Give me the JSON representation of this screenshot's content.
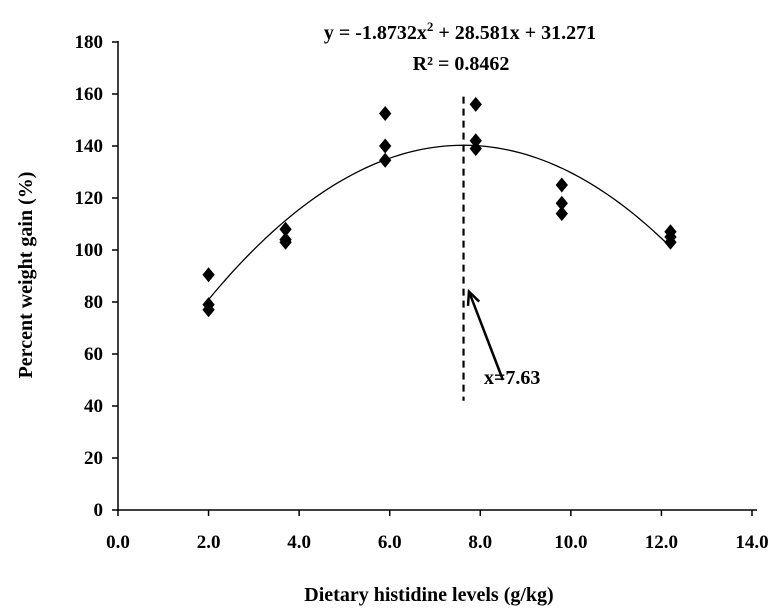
{
  "chart_data": {
    "type": "scatter",
    "xlabel": "Dietary histidine levels (g/kg)",
    "ylabel": "Percent weight gain (%)",
    "xlim": [
      0,
      14
    ],
    "ylim": [
      0,
      180
    ],
    "x_ticks": [
      0,
      2,
      4,
      6,
      8,
      10,
      12,
      14
    ],
    "x_tick_labels": [
      "0.0",
      "2.0",
      "4.0",
      "6.0",
      "8.0",
      "10.0",
      "12.0",
      "14.0"
    ],
    "y_ticks": [
      0,
      20,
      40,
      60,
      80,
      100,
      120,
      140,
      160,
      180
    ],
    "y_tick_labels": [
      "0",
      "20",
      "40",
      "60",
      "80",
      "100",
      "120",
      "140",
      "160",
      "180"
    ],
    "grid": false,
    "marker": "diamond",
    "marker_color": "#000000",
    "points": [
      {
        "x": 2.0,
        "y": 90.5
      },
      {
        "x": 2.0,
        "y": 79
      },
      {
        "x": 2.0,
        "y": 77
      },
      {
        "x": 3.7,
        "y": 108
      },
      {
        "x": 3.7,
        "y": 104
      },
      {
        "x": 3.7,
        "y": 103
      },
      {
        "x": 5.9,
        "y": 152.5
      },
      {
        "x": 5.9,
        "y": 140
      },
      {
        "x": 5.9,
        "y": 134.5
      },
      {
        "x": 7.9,
        "y": 156
      },
      {
        "x": 7.9,
        "y": 142
      },
      {
        "x": 7.9,
        "y": 139
      },
      {
        "x": 9.8,
        "y": 125
      },
      {
        "x": 9.8,
        "y": 118
      },
      {
        "x": 9.8,
        "y": 114
      },
      {
        "x": 12.2,
        "y": 107
      },
      {
        "x": 12.2,
        "y": 105
      },
      {
        "x": 12.2,
        "y": 103
      }
    ],
    "trendline": {
      "type": "polynomial",
      "coefficients": {
        "a": -1.8732,
        "b": 28.581,
        "c": 31.271
      },
      "x_range": [
        2.0,
        12.2
      ],
      "equation": "y = -1.8732x",
      "equation_exponent": "2",
      "equation_rest": " + 28.581x + 31.271",
      "r_squared": "R² = 0.8462"
    },
    "optimum": {
      "x": 7.63,
      "line_y_range": [
        42,
        159
      ],
      "label": "x=7.63",
      "arrow_from": {
        "x": 8.5,
        "y": 50
      },
      "arrow_to": {
        "x": 7.75,
        "y": 84
      }
    }
  }
}
